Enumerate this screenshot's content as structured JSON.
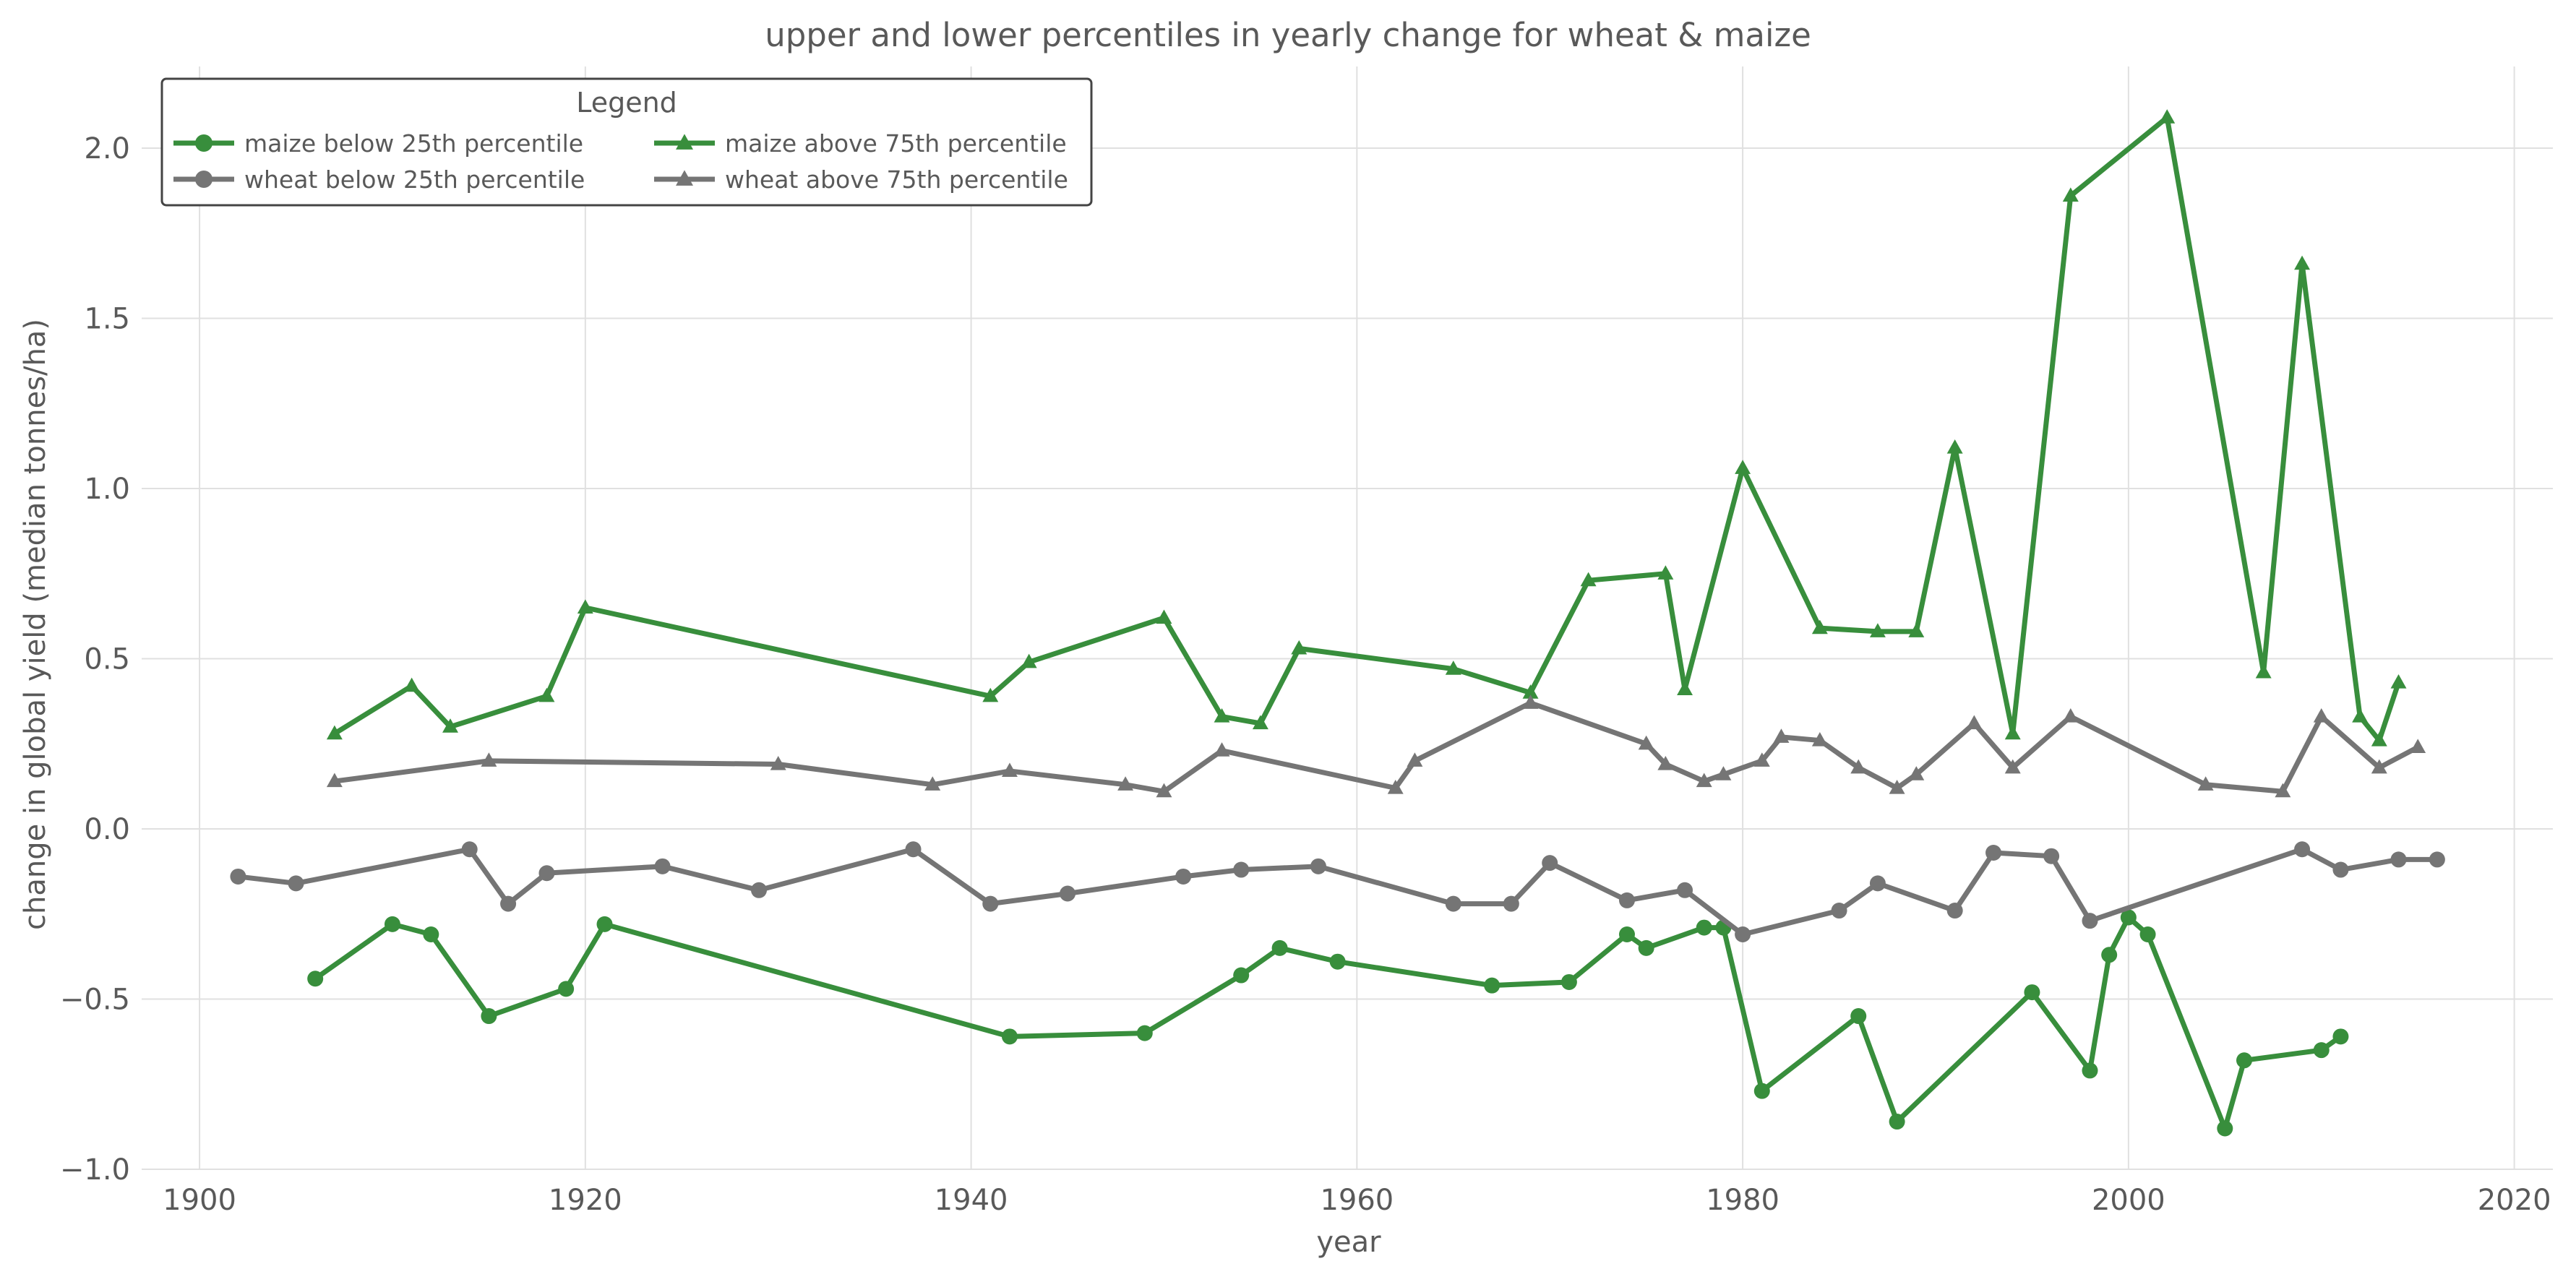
{
  "chart_data": {
    "type": "line",
    "title": "upper and lower percentiles in yearly change for wheat & maize",
    "xlabel": "year",
    "ylabel": "change in global yield (median tonnes/ha)",
    "xlim": [
      1897,
      2022
    ],
    "ylim": [
      -1.0,
      2.24
    ],
    "xticks": [
      1900,
      1920,
      1940,
      1960,
      1980,
      2000,
      2020
    ],
    "yticks": [
      -1.0,
      -0.5,
      0.0,
      0.5,
      1.0,
      1.5,
      2.0
    ],
    "xtick_labels": [
      "1900",
      "1920",
      "1940",
      "1960",
      "1980",
      "2000",
      "2020"
    ],
    "ytick_labels": [
      "−1.0",
      "−0.5",
      "0.0",
      "0.5",
      "1.0",
      "1.5",
      "2.0"
    ],
    "grid": true,
    "legend": {
      "title": "Legend",
      "position": "top-left",
      "columns": 2
    },
    "series": [
      {
        "name": "maize below 25th percentile",
        "color": "#388e3c",
        "marker": "circle",
        "x": [
          1906,
          1910,
          1912,
          1915,
          1919,
          1921,
          1942,
          1949,
          1954,
          1956,
          1959,
          1967,
          1971,
          1974,
          1975,
          1978,
          1979,
          1981,
          1986,
          1988,
          1995,
          1998,
          1999,
          2000,
          2001,
          2005,
          2006,
          2010,
          2011
        ],
        "y": [
          -0.44,
          -0.28,
          -0.31,
          -0.55,
          -0.47,
          -0.28,
          -0.61,
          -0.6,
          -0.43,
          -0.35,
          -0.39,
          -0.46,
          -0.45,
          -0.31,
          -0.35,
          -0.29,
          -0.29,
          -0.77,
          -0.55,
          -0.86,
          -0.48,
          -0.71,
          -0.37,
          -0.26,
          -0.31,
          -0.88,
          -0.68,
          -0.65,
          -0.61
        ]
      },
      {
        "name": "wheat below 25th percentile",
        "color": "#757575",
        "marker": "circle",
        "x": [
          1902,
          1905,
          1914,
          1916,
          1918,
          1924,
          1929,
          1937,
          1941,
          1945,
          1951,
          1954,
          1958,
          1965,
          1968,
          1970,
          1974,
          1977,
          1980,
          1985,
          1987,
          1991,
          1993,
          1996,
          1998,
          2009,
          2011,
          2014,
          2016
        ],
        "y": [
          -0.14,
          -0.16,
          -0.06,
          -0.22,
          -0.13,
          -0.11,
          -0.18,
          -0.06,
          -0.22,
          -0.19,
          -0.14,
          -0.12,
          -0.11,
          -0.22,
          -0.22,
          -0.1,
          -0.21,
          -0.18,
          -0.31,
          -0.24,
          -0.16,
          -0.24,
          -0.07,
          -0.08,
          -0.27,
          -0.06,
          -0.12,
          -0.09,
          -0.09
        ]
      },
      {
        "name": "maize above 75th percentile",
        "color": "#388e3c",
        "marker": "triangle",
        "x": [
          1907,
          1911,
          1913,
          1918,
          1920,
          1941,
          1943,
          1950,
          1953,
          1955,
          1957,
          1965,
          1969,
          1972,
          1976,
          1977,
          1980,
          1984,
          1987,
          1989,
          1991,
          1994,
          1997,
          2002,
          2007,
          2009,
          2012,
          2013,
          2014
        ],
        "y": [
          0.28,
          0.42,
          0.3,
          0.39,
          0.65,
          0.39,
          0.49,
          0.62,
          0.33,
          0.31,
          0.53,
          0.47,
          0.4,
          0.73,
          0.75,
          0.41,
          1.06,
          0.59,
          0.58,
          0.58,
          1.12,
          0.28,
          1.86,
          2.09,
          0.46,
          1.66,
          0.33,
          0.26,
          0.43
        ]
      },
      {
        "name": "wheat above 75th percentile",
        "color": "#757575",
        "marker": "triangle",
        "x": [
          1907,
          1915,
          1930,
          1938,
          1942,
          1948,
          1950,
          1953,
          1962,
          1963,
          1969,
          1975,
          1976,
          1978,
          1979,
          1981,
          1982,
          1984,
          1986,
          1988,
          1989,
          1992,
          1994,
          1997,
          2004,
          2008,
          2010,
          2013,
          2015
        ],
        "y": [
          0.14,
          0.2,
          0.19,
          0.13,
          0.17,
          0.13,
          0.11,
          0.23,
          0.12,
          0.2,
          0.37,
          0.25,
          0.19,
          0.14,
          0.16,
          0.2,
          0.27,
          0.26,
          0.18,
          0.12,
          0.16,
          0.31,
          0.18,
          0.33,
          0.13,
          0.11,
          0.33,
          0.18,
          0.24
        ]
      }
    ]
  }
}
